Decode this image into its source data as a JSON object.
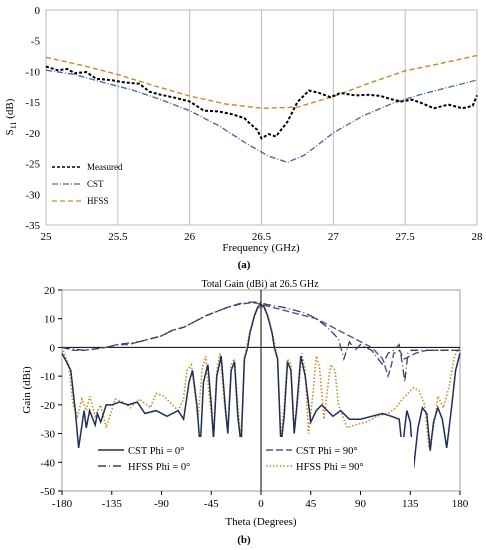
{
  "chart_data": [
    {
      "type": "line",
      "title": "",
      "xlabel": "Frequency (GHz)",
      "ylabel": "S11 (dB)",
      "ylabel_main": "S",
      "ylabel_sub": "11",
      "ylabel_unit": " (dB)",
      "xlim": [
        25,
        28
      ],
      "ylim": [
        -35,
        0
      ],
      "x_ticks": [
        25,
        25.5,
        26,
        26.5,
        27,
        27.5,
        28
      ],
      "y_ticks": [
        0,
        -5,
        -10,
        -15,
        -20,
        -25,
        -30,
        -35
      ],
      "grid": "vertical",
      "legend_placement": "bottom-left",
      "caption": "(a)",
      "series": [
        {
          "name": "Measured",
          "color": "#000000",
          "dash": "3,2",
          "x": [
            25.0,
            25.08,
            25.15,
            25.2,
            25.28,
            25.35,
            25.45,
            25.55,
            25.65,
            25.72,
            25.8,
            25.9,
            26.0,
            26.1,
            26.2,
            26.3,
            26.38,
            26.42,
            26.47,
            26.5,
            26.55,
            26.6,
            26.68,
            26.75,
            26.83,
            26.9,
            26.98,
            27.05,
            27.15,
            27.25,
            27.33,
            27.4,
            27.47,
            27.55,
            27.62,
            27.7,
            27.8,
            27.9,
            27.97,
            28.0
          ],
          "y": [
            -9.2,
            -9.8,
            -9.6,
            -10.3,
            -10.1,
            -11.2,
            -11.4,
            -11.8,
            -12.0,
            -13.3,
            -13.8,
            -14.3,
            -14.9,
            -16.4,
            -16.5,
            -17.0,
            -17.6,
            -18.5,
            -19.5,
            -20.9,
            -20.2,
            -20.6,
            -18.2,
            -15.0,
            -13.1,
            -13.5,
            -14.2,
            -13.5,
            -13.9,
            -13.8,
            -14.0,
            -14.5,
            -14.9,
            -14.6,
            -15.2,
            -16.0,
            -15.4,
            -16.0,
            -15.6,
            -13.9
          ]
        },
        {
          "name": "CST",
          "color": "#4a6da3",
          "dash": "6,2,1,2",
          "x": [
            25.0,
            25.2,
            25.4,
            25.6,
            25.8,
            26.0,
            26.2,
            26.4,
            26.55,
            26.68,
            26.8,
            27.0,
            27.2,
            27.4,
            27.6,
            27.8,
            28.0
          ],
          "y": [
            -9.8,
            -10.5,
            -11.8,
            -13.0,
            -14.6,
            -16.4,
            -18.8,
            -21.8,
            -23.8,
            -24.8,
            -23.6,
            -20.0,
            -17.3,
            -15.3,
            -13.8,
            -12.6,
            -11.4
          ]
        },
        {
          "name": "HFSS",
          "color": "#c88a2a",
          "dash": "5,3",
          "x": [
            25.0,
            25.25,
            25.5,
            25.75,
            26.0,
            26.25,
            26.5,
            26.75,
            27.0,
            27.25,
            27.5,
            27.75,
            28.0
          ],
          "y": [
            -7.7,
            -9.0,
            -10.5,
            -12.3,
            -14.0,
            -15.3,
            -16.0,
            -15.8,
            -14.1,
            -11.9,
            -9.9,
            -8.7,
            -7.4
          ]
        }
      ]
    },
    {
      "type": "line",
      "title": "Total Gain (dBi) at 26.5 GHz",
      "xlabel": "Theta (Degrees)",
      "ylabel": "Gain (dBi)",
      "xlim": [
        -180,
        180
      ],
      "ylim": [
        -50,
        20
      ],
      "x_ticks": [
        -180,
        -135,
        -90,
        -45,
        0,
        45,
        90,
        135,
        180
      ],
      "y_ticks": [
        20,
        10,
        0,
        -10,
        -20,
        -30,
        -40,
        -50
      ],
      "grid": "off",
      "legend_placement": "bottom",
      "caption": "(b)",
      "series": [
        {
          "name": "CST Phi = 0°",
          "color": "#1f2f5a",
          "dash": "",
          "x": [
            -180,
            -172,
            -168,
            -165,
            -160,
            -158,
            -155,
            -150,
            -148,
            -145,
            -140,
            -135,
            -128,
            -120,
            -112,
            -105,
            -95,
            -85,
            -75,
            -70,
            -65,
            -62,
            -58,
            -55,
            -52,
            -48,
            -45,
            -43,
            -40,
            -36,
            -32,
            -30,
            -27,
            -24,
            -21,
            -18,
            -15,
            -12,
            -10,
            -6,
            -3,
            0,
            3,
            6,
            10,
            12,
            15,
            18,
            21,
            24,
            27,
            30,
            32,
            36,
            40,
            45,
            50,
            55,
            60,
            65,
            72,
            80,
            90,
            100,
            110,
            118,
            125,
            128,
            130,
            132,
            135,
            138,
            142,
            146,
            150,
            153,
            156,
            160,
            164,
            168,
            172,
            176,
            180
          ],
          "y": [
            -2,
            -8,
            -22,
            -35,
            -22,
            -28,
            -22,
            -27,
            -23,
            -26,
            -20,
            -20,
            -19,
            -20,
            -19,
            -23,
            -22,
            -24,
            -22,
            -25,
            -12,
            -8,
            -20,
            -35,
            -12,
            -6,
            -20,
            -32,
            -10,
            -3,
            -22,
            -30,
            -8,
            -5,
            -24,
            -34,
            -4,
            0,
            5,
            11,
            14,
            15,
            14,
            11,
            5,
            0,
            -4,
            -34,
            -24,
            -5,
            -8,
            -30,
            -22,
            -3,
            -10,
            -26,
            -22,
            -20,
            -22,
            -24,
            -22,
            -25,
            -25,
            -24,
            -23,
            -24,
            -25,
            -36,
            -28,
            -22,
            -26,
            -42,
            -28,
            -21,
            -23,
            -36,
            -26,
            -21,
            -25,
            -35,
            -22,
            -8,
            -2
          ]
        },
        {
          "name": "CST Phi = 90°",
          "color": "#5b4e96",
          "dash": "7,3",
          "x": [
            -180,
            -170,
            -160,
            -150,
            -140,
            -130,
            -120,
            -110,
            -100,
            -90,
            -80,
            -70,
            -60,
            -50,
            -40,
            -30,
            -20,
            -10,
            -5,
            0,
            5,
            10,
            20,
            30,
            40,
            50,
            60,
            70,
            80,
            90,
            100,
            110,
            115,
            118,
            120,
            125,
            130,
            135,
            140,
            150,
            160,
            170,
            180
          ],
          "y": [
            0,
            -1,
            -1,
            -0.5,
            0,
            1,
            1,
            2,
            3,
            4,
            6,
            7,
            9,
            11,
            12.5,
            14,
            15,
            15.5,
            15.5,
            15,
            14.5,
            14,
            13,
            12,
            11,
            10,
            8,
            6,
            4,
            2,
            0,
            -4,
            -10,
            -6,
            -2,
            -1,
            -4,
            -3,
            -2,
            -1,
            -1,
            -1,
            -1
          ]
        },
        {
          "name": "HFSS Phi = 0°",
          "color": "#3a4156",
          "dash": "8,3,1,3",
          "x": [
            -180,
            -170,
            -160,
            -150,
            -140,
            -130,
            -120,
            -110,
            -100,
            -90,
            -80,
            -70,
            -60,
            -50,
            -40,
            -30,
            -20,
            -10,
            -5,
            0,
            5,
            10,
            20,
            30,
            40,
            50,
            60,
            70,
            75,
            80,
            85,
            90,
            100,
            110,
            115,
            120,
            125,
            128,
            130,
            133,
            136,
            140,
            150,
            160,
            170,
            180
          ],
          "y": [
            0,
            -0.5,
            -1,
            -0.5,
            0,
            1,
            1.5,
            2,
            3,
            4,
            6,
            7,
            9,
            11,
            12.5,
            14,
            15.2,
            15.8,
            15.8,
            15.5,
            15,
            14.6,
            14,
            13,
            12,
            10,
            7,
            3,
            -4,
            2,
            -1,
            1,
            -1,
            -6,
            -2,
            -1,
            1,
            -6,
            -12,
            -2,
            -1,
            -1,
            -1,
            -1,
            -1,
            -1
          ]
        },
        {
          "name": "HFSS Phi = 90°",
          "color": "#d08a1e",
          "dash": "1.5,2",
          "x": [
            -180,
            -174,
            -170,
            -166,
            -162,
            -158,
            -155,
            -150,
            -145,
            -140,
            -132,
            -125,
            -118,
            -110,
            -100,
            -95,
            -88,
            -80,
            -75,
            -70,
            -67,
            -63,
            -60,
            -57,
            -53,
            -50,
            -47,
            -43,
            -40,
            -37,
            -33,
            -30,
            -27,
            -24,
            -21,
            -18,
            -15,
            -12,
            -9,
            -6,
            -3,
            0,
            3,
            6,
            9,
            12,
            15,
            18,
            21,
            24,
            27,
            30,
            33,
            37,
            40,
            43,
            47,
            50,
            53,
            57,
            60,
            63,
            67,
            70,
            78,
            85,
            95,
            105,
            115,
            122,
            128,
            133,
            138,
            143,
            148,
            152,
            156,
            160,
            165,
            170,
            175,
            180
          ],
          "y": [
            0,
            -6,
            -20,
            -24,
            -18,
            -22,
            -17,
            -24,
            -20,
            -28,
            -18,
            -19,
            -21,
            -18,
            -21,
            -16,
            -17,
            -20,
            -22,
            -18,
            -8,
            -6,
            -15,
            -25,
            -7,
            -3,
            -16,
            -30,
            -8,
            -2,
            -20,
            -28,
            -6,
            -4,
            -20,
            -32,
            -4,
            2,
            7,
            11,
            13.5,
            14,
            13.5,
            11,
            7,
            2,
            -4,
            -32,
            -20,
            -4,
            -6,
            -28,
            -20,
            -2,
            -8,
            -30,
            -16,
            -3,
            -7,
            -25,
            -15,
            -6,
            -8,
            -20,
            -28,
            -27,
            -26,
            -24,
            -23,
            -21,
            -18,
            -16,
            -14,
            -15,
            -20,
            -35,
            -28,
            -17,
            -21,
            -14,
            -3,
            0
          ]
        }
      ]
    }
  ]
}
